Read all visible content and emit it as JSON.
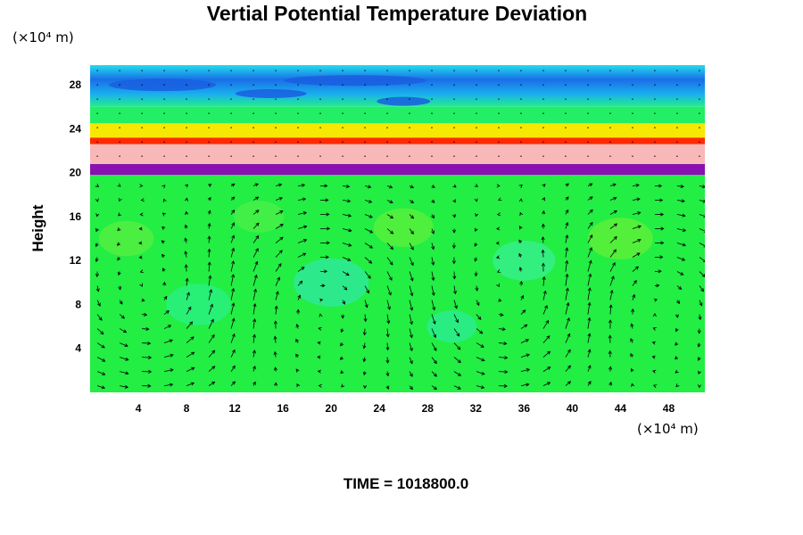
{
  "chart_data": {
    "type": "heatmap",
    "title": "Vertial Potential Temperature Deviation",
    "ylabel": "Height",
    "y_unit": "(×10⁴ m)",
    "x_unit": "(×10⁴ m)",
    "footer": "TIME = 1018800.0",
    "x_ticks": [
      4,
      8,
      12,
      16,
      20,
      24,
      28,
      32,
      36,
      40,
      44,
      48
    ],
    "y_ticks": [
      4,
      8,
      12,
      16,
      20,
      24,
      28
    ],
    "xlim": [
      0,
      51
    ],
    "ylim": [
      0,
      29.8
    ],
    "overlay": "wind vectors",
    "field_bands": [
      {
        "from": 0,
        "to": 19.8,
        "color": "#22ee44"
      },
      {
        "from": 19.8,
        "to": 20.8,
        "color": "#8a10b0"
      },
      {
        "from": 20.8,
        "to": 22.6,
        "color": "#f8b8b8"
      },
      {
        "from": 22.6,
        "to": 23.2,
        "color": "#ff2a00"
      },
      {
        "from": 23.2,
        "to": 24.5,
        "color": "#f6e800"
      },
      {
        "from": 24.5,
        "to": 26,
        "color": "#22ee66"
      },
      {
        "from": 26,
        "to": 29.8,
        "color": "#1ab0ee"
      }
    ],
    "colors": {
      "low_band": "#22ee44",
      "purple_band": "#8a10b0",
      "pink_band": "#f8b8b8",
      "red_band": "#ff2a00",
      "yellow_band": "#f6e800",
      "cyan_band": "#22ddee",
      "blue_band": "#1a6ee8"
    }
  }
}
